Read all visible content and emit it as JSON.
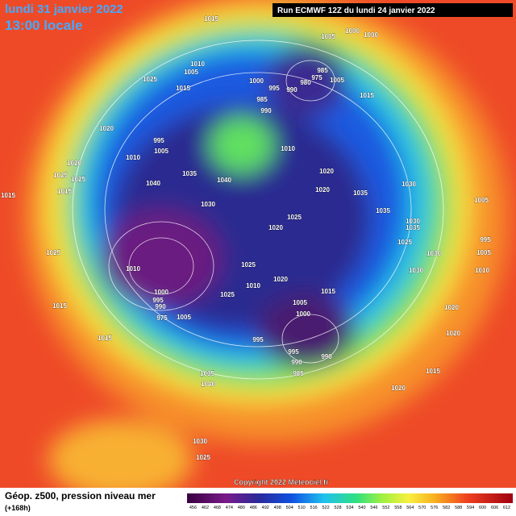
{
  "header": {
    "date": "lundi 31 janvier 2022",
    "time": "13:00 locale",
    "run": "Run ECMWF 12Z du lundi 24 janvier 2022"
  },
  "map": {
    "pressure_labels": [
      "1015",
      "1005",
      "1000",
      "1000",
      "1010",
      "1005",
      "1025",
      "1015",
      "985",
      "975",
      "980",
      "1000",
      "995",
      "990",
      "985",
      "990",
      "1005",
      "1015",
      "1020",
      "995",
      "1005",
      "1010",
      "1010",
      "1020",
      "1025",
      "1025",
      "1015",
      "1035",
      "1040",
      "1040",
      "1020",
      "1020",
      "1035",
      "1030",
      "1015",
      "1030",
      "1035",
      "1030",
      "1035",
      "1020",
      "1025",
      "1005",
      "995",
      "1005",
      "1010",
      "1025",
      "1030",
      "1030",
      "1025",
      "1010",
      "1025",
      "1010",
      "1020",
      "1015",
      "1025",
      "1000",
      "995",
      "990",
      "975",
      "1005",
      "1005",
      "1000",
      "1015",
      "1020",
      "1020",
      "995",
      "995",
      "990",
      "990",
      "985",
      "1015",
      "1035",
      "1040",
      "1020",
      "1015",
      "1030",
      "1025"
    ]
  },
  "footer": {
    "title": "Géop. z500, pression niveau mer",
    "lead": "(+168h)",
    "copyright": "Copyright 2022 Meteociel.fr"
  },
  "colorbar": {
    "labels": [
      "456",
      "462",
      "468",
      "474",
      "480",
      "486",
      "492",
      "498",
      "504",
      "510",
      "516",
      "522",
      "528",
      "534",
      "540",
      "546",
      "552",
      "558",
      "564",
      "570",
      "576",
      "582",
      "588",
      "594",
      "600",
      "606",
      "612"
    ]
  }
}
